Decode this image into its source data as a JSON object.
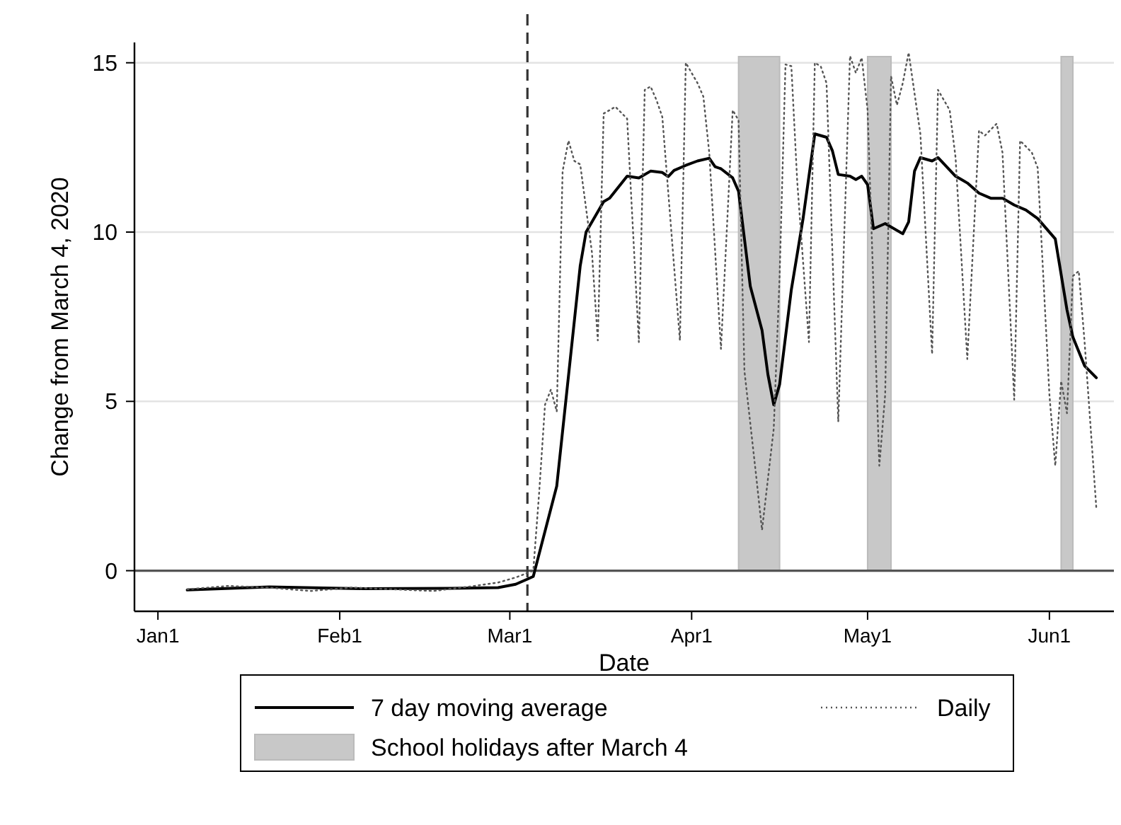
{
  "chart_data": {
    "type": "line",
    "xlabel": "Date",
    "ylabel": "Change from March 4, 2020",
    "xlim": [
      "2019-12-28",
      "2020-06-12"
    ],
    "xticks": [
      {
        "value": "2020-01-01",
        "label": "Jan1"
      },
      {
        "value": "2020-02-01",
        "label": "Feb1"
      },
      {
        "value": "2020-03-01",
        "label": "Mar1"
      },
      {
        "value": "2020-04-01",
        "label": "Apr1"
      },
      {
        "value": "2020-05-01",
        "label": "May1"
      },
      {
        "value": "2020-06-01",
        "label": "Jun1"
      }
    ],
    "ylim": [
      -1.2,
      15.6
    ],
    "yticks": [
      0,
      5,
      10,
      15
    ],
    "grid": "y",
    "legend": "bottom",
    "marker": "none",
    "series": [
      {
        "name": "7 day moving average",
        "color": "#000000",
        "line_style": "solid",
        "x": [
          "2020-01-06",
          "2020-01-20",
          "2020-02-05",
          "2020-02-20",
          "2020-02-28",
          "2020-03-02",
          "2020-03-04",
          "2020-03-05",
          "2020-03-09",
          "2020-03-13",
          "2020-03-14",
          "2020-03-17",
          "2020-03-18",
          "2020-03-21",
          "2020-03-23",
          "2020-03-25",
          "2020-03-27",
          "2020-03-28",
          "2020-03-29",
          "2020-03-31",
          "2020-04-02",
          "2020-04-04",
          "2020-04-05",
          "2020-04-06",
          "2020-04-08",
          "2020-04-09",
          "2020-04-11",
          "2020-04-13",
          "2020-04-14",
          "2020-04-15",
          "2020-04-16",
          "2020-04-18",
          "2020-04-20",
          "2020-04-22",
          "2020-04-24",
          "2020-04-25",
          "2020-04-26",
          "2020-04-28",
          "2020-04-29",
          "2020-04-30",
          "2020-05-01",
          "2020-05-02",
          "2020-05-04",
          "2020-05-07",
          "2020-05-08",
          "2020-05-09",
          "2020-05-10",
          "2020-05-12",
          "2020-05-13",
          "2020-05-16",
          "2020-05-17",
          "2020-05-18",
          "2020-05-20",
          "2020-05-22",
          "2020-05-24",
          "2020-05-26",
          "2020-05-28",
          "2020-05-30",
          "2020-06-02",
          "2020-06-04",
          "2020-06-05",
          "2020-06-07",
          "2020-06-09"
        ],
        "values": [
          -0.57,
          -0.48,
          -0.53,
          -0.52,
          -0.5,
          -0.4,
          -0.25,
          -0.17,
          2.5,
          9.0,
          10.0,
          10.9,
          11.0,
          11.65,
          11.6,
          11.8,
          11.76,
          11.64,
          11.82,
          11.97,
          12.1,
          12.18,
          11.93,
          11.87,
          11.6,
          11.2,
          8.4,
          7.1,
          5.8,
          4.9,
          5.5,
          8.3,
          10.4,
          12.9,
          12.8,
          12.4,
          11.7,
          11.65,
          11.55,
          11.65,
          11.4,
          10.1,
          10.25,
          9.95,
          10.3,
          11.8,
          12.2,
          12.1,
          12.2,
          11.65,
          11.55,
          11.45,
          11.15,
          11.0,
          11.0,
          10.8,
          10.65,
          10.4,
          9.8,
          7.7,
          6.9,
          6.05,
          5.7
        ]
      },
      {
        "name": "Daily",
        "color": "#555555",
        "line_style": "dotted",
        "x": [
          "2020-01-06",
          "2020-01-13",
          "2020-01-20",
          "2020-01-27",
          "2020-02-03",
          "2020-02-10",
          "2020-02-17",
          "2020-02-24",
          "2020-02-28",
          "2020-03-02",
          "2020-03-05",
          "2020-03-06",
          "2020-03-07",
          "2020-03-08",
          "2020-03-09",
          "2020-03-10",
          "2020-03-11",
          "2020-03-12",
          "2020-03-13",
          "2020-03-15",
          "2020-03-16",
          "2020-03-17",
          "2020-03-19",
          "2020-03-21",
          "2020-03-23",
          "2020-03-24",
          "2020-03-25",
          "2020-03-26",
          "2020-03-27",
          "2020-03-30",
          "2020-03-31",
          "2020-04-02",
          "2020-04-03",
          "2020-04-04",
          "2020-04-06",
          "2020-04-08",
          "2020-04-09",
          "2020-04-10",
          "2020-04-12",
          "2020-04-13",
          "2020-04-15",
          "2020-04-16",
          "2020-04-17",
          "2020-04-18",
          "2020-04-19",
          "2020-04-21",
          "2020-04-22",
          "2020-04-23",
          "2020-04-24",
          "2020-04-26",
          "2020-04-28",
          "2020-04-29",
          "2020-04-30",
          "2020-05-01",
          "2020-05-03",
          "2020-05-04",
          "2020-05-05",
          "2020-05-06",
          "2020-05-07",
          "2020-05-08",
          "2020-05-10",
          "2020-05-12",
          "2020-05-13",
          "2020-05-14",
          "2020-05-15",
          "2020-05-16",
          "2020-05-18",
          "2020-05-20",
          "2020-05-21",
          "2020-05-23",
          "2020-05-24",
          "2020-05-26",
          "2020-05-27",
          "2020-05-29",
          "2020-05-30",
          "2020-06-01",
          "2020-06-02",
          "2020-06-03",
          "2020-06-04",
          "2020-06-05",
          "2020-06-06",
          "2020-06-07",
          "2020-06-09"
        ],
        "values": [
          -0.55,
          -0.45,
          -0.5,
          -0.6,
          -0.5,
          -0.55,
          -0.6,
          -0.45,
          -0.35,
          -0.2,
          0.0,
          2.3,
          4.9,
          5.35,
          4.7,
          11.8,
          12.7,
          12.1,
          12.0,
          9.4,
          6.8,
          13.5,
          13.7,
          13.35,
          6.75,
          14.2,
          14.3,
          13.9,
          13.4,
          6.8,
          15.0,
          14.4,
          14.0,
          12.35,
          6.55,
          13.6,
          13.3,
          5.9,
          2.8,
          1.2,
          4.2,
          8.7,
          14.95,
          14.9,
          11.5,
          6.75,
          15.0,
          14.9,
          14.4,
          4.4,
          15.2,
          14.7,
          15.15,
          13.6,
          3.1,
          5.2,
          14.6,
          13.75,
          14.4,
          15.3,
          12.9,
          6.4,
          14.2,
          13.9,
          13.6,
          12.2,
          6.25,
          13.0,
          12.85,
          13.2,
          12.35,
          5.05,
          12.7,
          12.35,
          11.9,
          5.2,
          3.1,
          5.6,
          4.65,
          8.7,
          8.85,
          6.75,
          1.85
        ]
      }
    ],
    "bands": [
      {
        "axis": "x",
        "from": "2020-04-09",
        "to": "2020-04-16",
        "label": "School holidays after March 4",
        "color": "#c8c8c8"
      },
      {
        "axis": "x",
        "from": "2020-05-01",
        "to": "2020-05-05",
        "color": "#c8c8c8"
      },
      {
        "axis": "x",
        "from": "2020-06-03",
        "to": "2020-06-05",
        "color": "#c8c8c8"
      }
    ],
    "ref_lines": [
      {
        "axis": "y",
        "value": 0,
        "color": "#555555",
        "line_style": "solid"
      },
      {
        "axis": "x",
        "value": "2020-03-04",
        "color": "#333333",
        "line_style": "dashed"
      }
    ]
  }
}
